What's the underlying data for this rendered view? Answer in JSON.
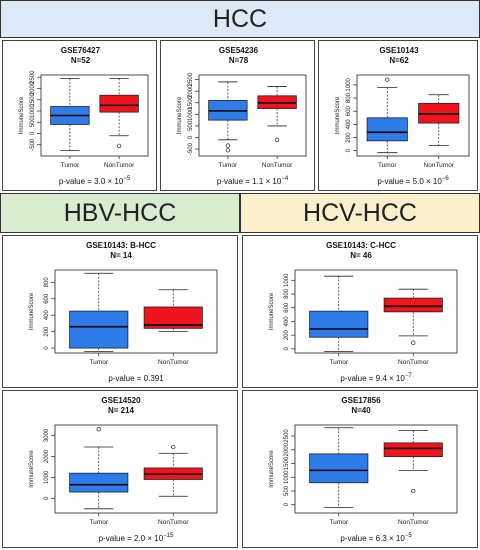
{
  "headers": {
    "hcc": "HCC",
    "hbv": "HBV-HCC",
    "hcv": "HCV-HCC"
  },
  "colors": {
    "tumor": "#2f7be8",
    "nontumor": "#f0141e"
  },
  "chart_data": [
    {
      "type": "boxplot",
      "title": "GSE76427",
      "subtitle": "N=52",
      "ylabel": "ImmuneScore",
      "categories": [
        "Tumor",
        "NonTumor"
      ],
      "ylim": [
        -1000,
        2600
      ],
      "yticks": [
        -500,
        0,
        500,
        1000,
        1500,
        2000,
        2500
      ],
      "pvalue": {
        "mantissa": "p-value = 3.0 × 10",
        "exponent": "−5"
      },
      "boxes": [
        {
          "name": "Tumor",
          "whisker_low": -750,
          "q1": 400,
          "median": 800,
          "q3": 1200,
          "whisker_high": 2450,
          "outliers": []
        },
        {
          "name": "NonTumor",
          "whisker_low": -100,
          "q1": 950,
          "median": 1250,
          "q3": 1700,
          "whisker_high": 2450,
          "outliers": [
            -550
          ]
        }
      ]
    },
    {
      "type": "boxplot",
      "title": "GSE54236",
      "subtitle": "N=78",
      "ylabel": "ImmuneScore",
      "categories": [
        "Tumor",
        "NonTumor"
      ],
      "ylim": [
        -800,
        2700
      ],
      "yticks": [
        -500,
        0,
        500,
        1000,
        1500,
        2000,
        2500
      ],
      "pvalue": {
        "mantissa": "p-value = 1.1 × 10",
        "exponent": "−4"
      },
      "boxes": [
        {
          "name": "Tumor",
          "whisker_low": -100,
          "q1": 750,
          "median": 1150,
          "q3": 1600,
          "whisker_high": 2400,
          "outliers": [
            -350,
            -550
          ]
        },
        {
          "name": "NonTumor",
          "whisker_low": 500,
          "q1": 1250,
          "median": 1500,
          "q3": 1800,
          "whisker_high": 2200,
          "outliers": [
            -100
          ]
        }
      ]
    },
    {
      "type": "boxplot",
      "title": "GSE10143",
      "subtitle": "N=62",
      "ylabel": "ImmuneScore",
      "categories": [
        "Tumor",
        "NonTumor"
      ],
      "ylim": [
        -80,
        1150
      ],
      "yticks": [
        0,
        200,
        400,
        600,
        800,
        1000
      ],
      "pvalue": {
        "mantissa": "p-value = 5.0 × 10",
        "exponent": "−6"
      },
      "boxes": [
        {
          "name": "Tumor",
          "whisker_low": -30,
          "q1": 150,
          "median": 280,
          "q3": 500,
          "whisker_high": 960,
          "outliers": [
            1080
          ]
        },
        {
          "name": "NonTumor",
          "whisker_low": 80,
          "q1": 420,
          "median": 560,
          "q3": 720,
          "whisker_high": 850,
          "outliers": []
        }
      ]
    },
    {
      "type": "boxplot",
      "title": "GSE10143: B-HCC",
      "subtitle": "N= 14",
      "ylabel": "ImmuneScore",
      "categories": [
        "Tumor",
        "NonTumor"
      ],
      "ylim": [
        -60,
        950
      ],
      "yticks": [
        0,
        200,
        400,
        600,
        800
      ],
      "pvalue": {
        "mantissa": "p-value = 0.391",
        "exponent": ""
      },
      "boxes": [
        {
          "name": "Tumor",
          "whisker_low": -40,
          "q1": 0,
          "median": 260,
          "q3": 450,
          "whisker_high": 910,
          "outliers": []
        },
        {
          "name": "NonTumor",
          "whisker_low": 200,
          "q1": 240,
          "median": 280,
          "q3": 500,
          "whisker_high": 710,
          "outliers": []
        }
      ]
    },
    {
      "type": "boxplot",
      "title": "GSE10143: C-HCC",
      "subtitle": "N= 46",
      "ylabel": "ImmuneScore",
      "categories": [
        "Tumor",
        "NonTumor"
      ],
      "ylim": [
        -60,
        1150
      ],
      "yticks": [
        0,
        200,
        400,
        600,
        800,
        1000
      ],
      "pvalue": {
        "mantissa": "p-value = 9.4 × 10",
        "exponent": "−7"
      },
      "boxes": [
        {
          "name": "Tumor",
          "whisker_low": -40,
          "q1": 170,
          "median": 290,
          "q3": 550,
          "whisker_high": 1060,
          "outliers": []
        },
        {
          "name": "NonTumor",
          "whisker_low": 190,
          "q1": 540,
          "median": 620,
          "q3": 740,
          "whisker_high": 870,
          "outliers": [
            90
          ]
        }
      ]
    },
    {
      "type": "boxplot",
      "title": "GSE14520",
      "subtitle": "N= 214",
      "ylabel": "ImmuneScore",
      "categories": [
        "Tumor",
        "NonTumor"
      ],
      "ylim": [
        -700,
        3500
      ],
      "yticks": [
        0,
        1000,
        2000,
        3000
      ],
      "pvalue": {
        "mantissa": "p-value = 2.0 × 10",
        "exponent": "−15"
      },
      "boxes": [
        {
          "name": "Tumor",
          "whisker_low": -500,
          "q1": 300,
          "median": 650,
          "q3": 1200,
          "whisker_high": 2450,
          "outliers": [
            3300
          ]
        },
        {
          "name": "NonTumor",
          "whisker_low": 100,
          "q1": 900,
          "median": 1150,
          "q3": 1450,
          "whisker_high": 2150,
          "outliers": [
            2450
          ]
        }
      ]
    },
    {
      "type": "boxplot",
      "title": "GSE17856",
      "subtitle": "N=40",
      "ylabel": "ImmuneScore",
      "categories": [
        "Tumor",
        "NonTumor"
      ],
      "ylim": [
        -300,
        2900
      ],
      "yticks": [
        0,
        500,
        1000,
        1500,
        2000,
        2500
      ],
      "pvalue": {
        "mantissa": "p-value = 6.3 × 10",
        "exponent": "−5"
      },
      "boxes": [
        {
          "name": "Tumor",
          "whisker_low": -100,
          "q1": 800,
          "median": 1250,
          "q3": 1850,
          "whisker_high": 2800,
          "outliers": []
        },
        {
          "name": "NonTumor",
          "whisker_low": 1250,
          "q1": 1750,
          "median": 2050,
          "q3": 2250,
          "whisker_high": 2700,
          "outliers": [
            500
          ]
        }
      ]
    }
  ]
}
